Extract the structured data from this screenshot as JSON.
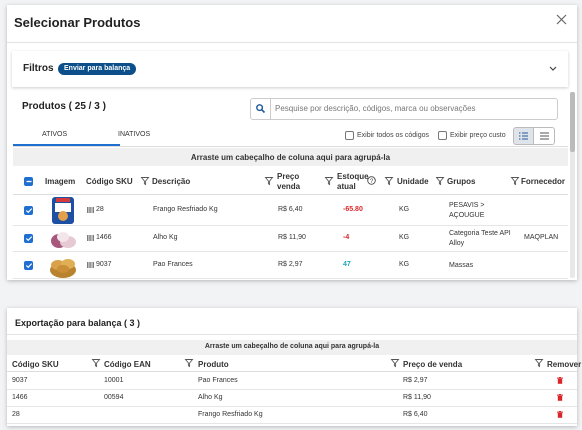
{
  "dialog": {
    "title": "Selecionar Produtos",
    "filters": {
      "label": "Filtros",
      "badge": "Enviar para balança"
    },
    "products_title": "Produtos ( 25 / 3 )",
    "search_placeholder": "Pesquise por descrição, códigos, marca ou observações",
    "tabs": [
      "ATIVOS",
      "INATIVOS"
    ],
    "options": [
      "Exibir todos os códigos",
      "Exibir preço custo"
    ],
    "group_hint": "Arraste um cabeçalho de coluna aqui para agrupá-la",
    "table": {
      "headers": [
        "Imagem",
        "Código SKU",
        "Descrição",
        "Preço venda",
        "Estoque atual",
        "Unidade",
        "Grupos",
        "Fornecedor"
      ],
      "rows": [
        {
          "sku": "28",
          "description": "Frango Resfriado Kg",
          "price": "R$ 6,40",
          "stock": "-65.80",
          "unit": "KG",
          "group": "PESAVIS > AÇOUGUE"
        },
        {
          "sku": "1466",
          "description": "Alho Kg",
          "price": "R$ 11,90",
          "stock": "-4",
          "unit": "KG",
          "group": "Categoria Teste API Alloy",
          "supplier": "MAQPLAN"
        },
        {
          "sku": "9037",
          "description": "Pao Frances",
          "price": "R$ 2,97",
          "stock": "47",
          "unit": "KG",
          "group": "Massas"
        }
      ]
    }
  },
  "export": {
    "title": "Exportação para balança ( 3 )",
    "group_hint": "Arraste um cabeçalho de coluna aqui para agrupá-la",
    "table": {
      "headers": [
        "Código SKU",
        "Código EAN",
        "Produto",
        "Preço de venda",
        "Remover"
      ],
      "rows": [
        {
          "sku": "9037",
          "ean": "10001",
          "product": "Pao Frances",
          "price": "R$ 2,97"
        },
        {
          "sku": "1466",
          "ean": "00594",
          "product": "Alho Kg",
          "price": "R$ 11,90"
        },
        {
          "sku": "28",
          "product": "Frango Resfriado Kg",
          "price": "R$ 6,40"
        }
      ]
    }
  }
}
